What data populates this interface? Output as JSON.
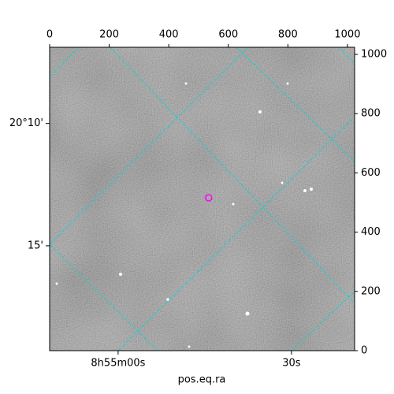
{
  "chart_data": {
    "type": "image",
    "xlabel": "pos.eq.ra",
    "xlim": [
      0,
      1024
    ],
    "ylim": [
      0,
      1024
    ],
    "xticks": [
      0,
      200,
      400,
      600,
      800,
      1000
    ],
    "yticks": [
      0,
      200,
      400,
      600,
      800,
      1000
    ],
    "ra_ticks": [
      {
        "value": 230,
        "label": "8h55m00s"
      },
      {
        "value": 812,
        "label": "30s"
      }
    ],
    "dec_ticks": [
      {
        "value": 767,
        "label": "20°10'"
      },
      {
        "value": 354,
        "label": "15'"
      }
    ],
    "grid": true,
    "grid_color": "#22cccc",
    "marker": {
      "x": 534,
      "y": 516,
      "color": "#ff00ff"
    }
  }
}
